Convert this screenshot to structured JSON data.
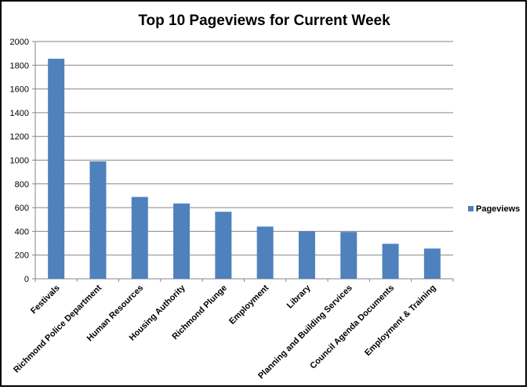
{
  "chart_data": {
    "type": "bar",
    "title": "Top 10 Pageviews for Current Week",
    "xlabel": "",
    "ylabel": "",
    "categories": [
      "Festivals",
      "Richmond Police Department",
      "Human Resources",
      "Housing Authority",
      "Richmond Plunge",
      "Employment",
      "Library",
      "Planning and Building Services",
      "Council Agenda Documents",
      "Employment & Training"
    ],
    "series": [
      {
        "name": "Pageviews",
        "values": [
          1855,
          990,
          690,
          635,
          565,
          440,
          400,
          395,
          295,
          255
        ],
        "color": "#4f81bd"
      }
    ],
    "ylim": [
      0,
      2000
    ],
    "yticks": [
      0,
      200,
      400,
      600,
      800,
      1000,
      1200,
      1400,
      1600,
      1800,
      2000
    ],
    "grid": true,
    "legend_position": "right"
  }
}
